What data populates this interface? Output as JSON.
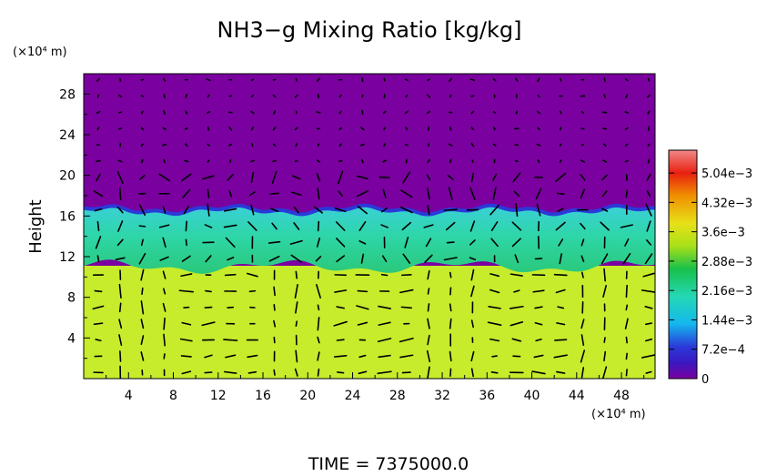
{
  "chart_data": {
    "type": "heatmap",
    "title": "NH3−g Mixing Ratio [kg/kg]",
    "ylabel": "Height",
    "yunit": "(×10⁴ m)",
    "xunit": "(×10⁴ m)",
    "xlim": [
      0,
      51
    ],
    "ylim": [
      0,
      30
    ],
    "xticks": [
      "4",
      "8",
      "12",
      "16",
      "20",
      "24",
      "28",
      "32",
      "36",
      "40",
      "44",
      "48"
    ],
    "yticks": [
      "4",
      "8",
      "12",
      "16",
      "20",
      "24",
      "28"
    ],
    "colorbar": {
      "range": [
        0,
        0.0056
      ],
      "tick_labels": [
        "0",
        "7.2e−4",
        "1.44e−3",
        "2.16e−3",
        "2.88e−3",
        "3.6e−3",
        "4.32e−3",
        "5.04e−3"
      ],
      "colors": [
        "#7a00a0",
        "#2a3ad8",
        "#14b8ee",
        "#24d8b4",
        "#18c04a",
        "#a8e018",
        "#e8e018",
        "#f09000",
        "#e82010",
        "#f08888"
      ]
    },
    "regions": [
      {
        "name": "upper",
        "y_range": [
          17,
          30
        ],
        "value": 0.0,
        "color": "#7a00a0"
      },
      {
        "name": "transition",
        "y_range": [
          16.3,
          17.2
        ],
        "value": 0.0007,
        "color": "#2a3ad8"
      },
      {
        "name": "middle",
        "y_range": [
          11,
          16.5
        ],
        "value": 0.0023,
        "color": "#2ad49a"
      },
      {
        "name": "lower",
        "y_range": [
          0,
          11
        ],
        "value": 0.0036,
        "color": "#c6ec2c"
      }
    ],
    "footer": "TIME  =  7375000.0",
    "vectors": "wind vectors overlaid on a regular grid"
  }
}
